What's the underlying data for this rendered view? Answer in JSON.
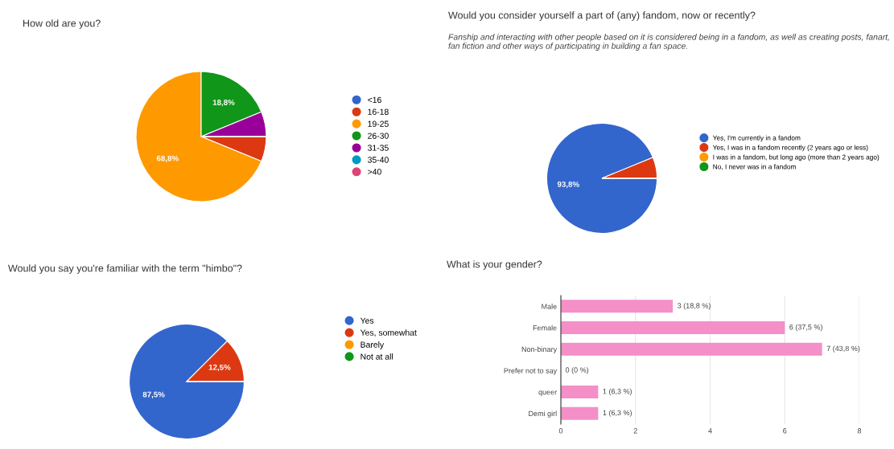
{
  "chart_data": [
    {
      "type": "pie",
      "title": "How old are you?",
      "categories": [
        "<16",
        "16-18",
        "19-25",
        "26-30",
        "31-35",
        "35-40",
        ">40"
      ],
      "values": [
        0,
        6.2,
        68.8,
        18.8,
        6.2,
        0,
        0
      ],
      "colors": [
        "#3366cc",
        "#dc3912",
        "#ff9900",
        "#109618",
        "#990099",
        "#0099c6",
        "#dd4477"
      ],
      "value_labels": [
        null,
        null,
        "68,8%",
        "18,8%",
        null,
        null,
        null
      ],
      "legend": "right"
    },
    {
      "type": "pie",
      "title": "Would you consider yourself a part of (any) fandom, now or recently?",
      "subtitle": "Fanship and interacting with other people based on it is considered being in a fandom, as well as creating posts, fanart, fan fiction and other ways of participating in building a fan space.",
      "categories": [
        "Yes, I'm currently in a fandom",
        "Yes, I was in a fandom recently (2 years ago or less)",
        "I was in a fandom, but long ago (more than 2 years ago)",
        "No, I never was in a fandom"
      ],
      "values": [
        93.8,
        6.2,
        0,
        0
      ],
      "colors": [
        "#3366cc",
        "#dc3912",
        "#ff9900",
        "#109618"
      ],
      "value_labels": [
        "93,8%",
        null,
        null,
        null
      ],
      "legend": "right"
    },
    {
      "type": "pie",
      "title": "Would you say you're familiar with the term \"himbo\"?",
      "categories": [
        "Yes",
        "Yes, somewhat",
        "Barely",
        "Not at all"
      ],
      "values": [
        87.5,
        12.5,
        0,
        0
      ],
      "colors": [
        "#3366cc",
        "#dc3912",
        "#ff9900",
        "#109618"
      ],
      "value_labels": [
        "87,5%",
        "12,5%",
        null,
        null
      ],
      "legend": "right"
    },
    {
      "type": "bar",
      "orientation": "horizontal",
      "title": "What is your gender?",
      "categories": [
        "Male",
        "Female",
        "Non-binary",
        "Prefer not to say",
        "queer",
        "Demi girl"
      ],
      "values": [
        3,
        6,
        7,
        0,
        1,
        1
      ],
      "color": "#f48fc8",
      "value_labels": [
        "3 (18,8 %)",
        "6 (37,5 %)",
        "7 (43,8 %)",
        "0 (0 %)",
        "1 (6,3 %)",
        "1 (6,3 %)"
      ],
      "xlim": [
        0,
        8
      ],
      "xticks": [
        0,
        2,
        4,
        6,
        8
      ],
      "grid": "x"
    }
  ]
}
